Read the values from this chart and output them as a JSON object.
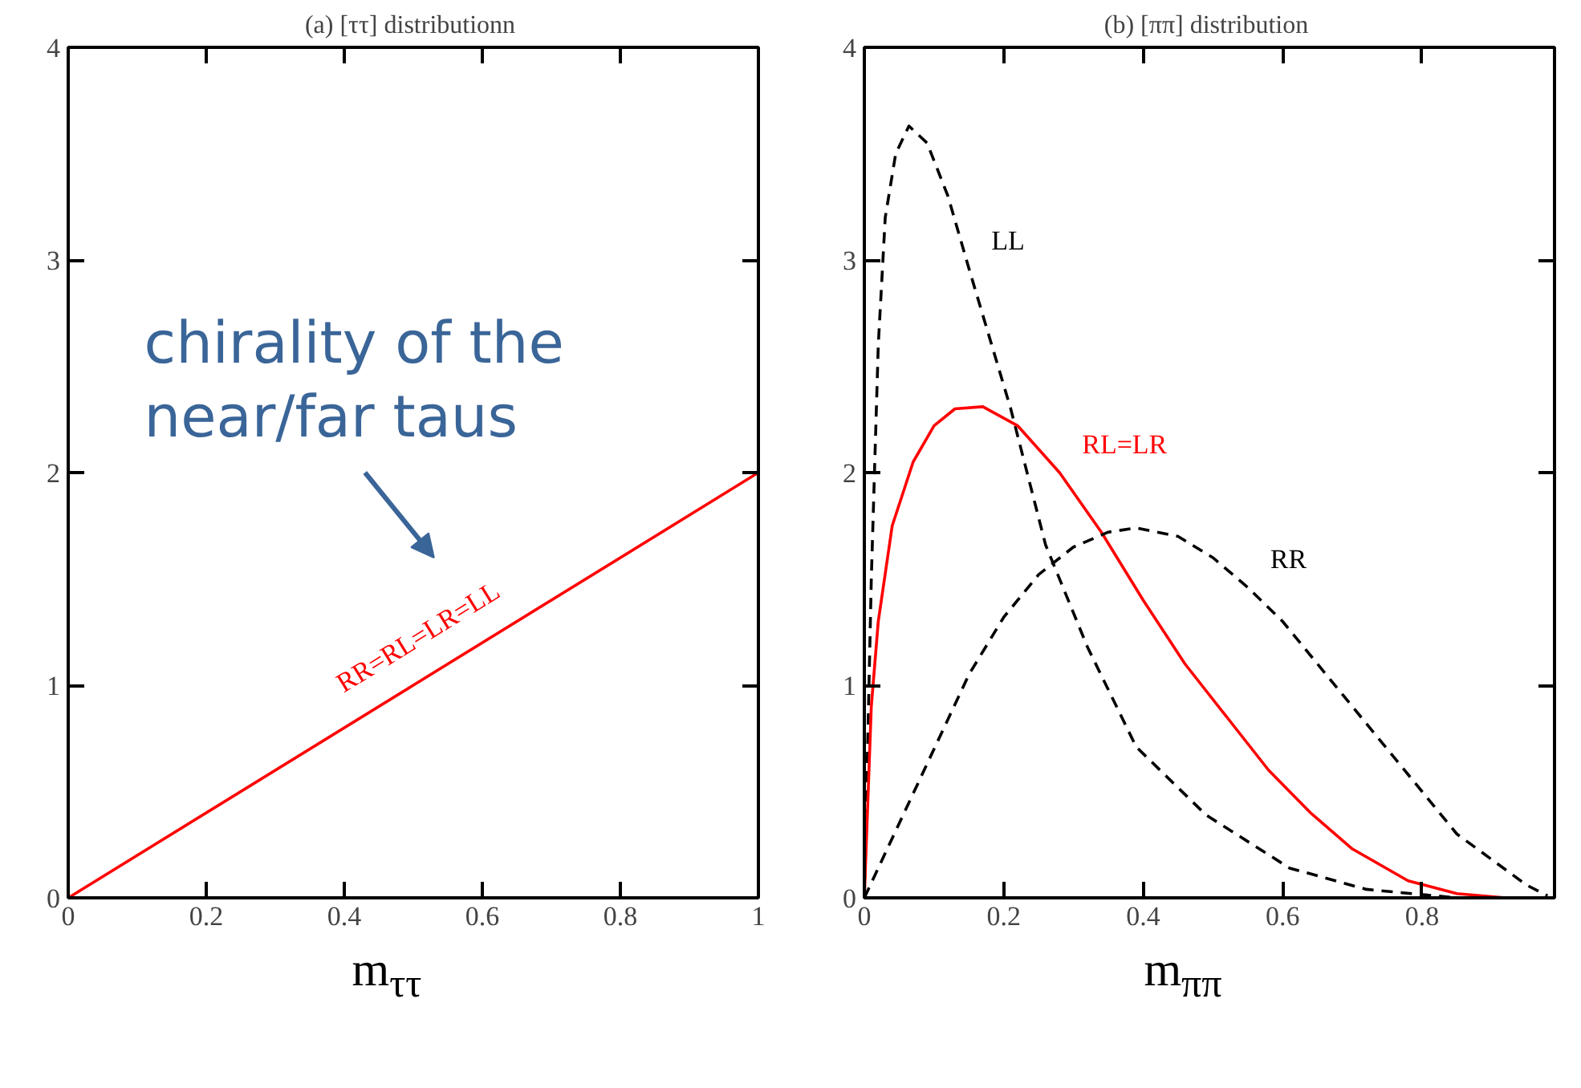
{
  "chart_data": [
    {
      "type": "line",
      "title": "(a)  [ττ] distributionn",
      "xlabel": "m$_{ττ}$",
      "xlim": [
        0,
        1
      ],
      "ylim": [
        0,
        4
      ],
      "xticks": [
        0,
        0.2,
        0.4,
        0.6,
        0.8,
        1
      ],
      "yticks": [
        0,
        1,
        2,
        3,
        4
      ],
      "annotations": [
        "chirality of the\nnear/far taus"
      ],
      "series": [
        {
          "name": "RR=RL=LR=LL",
          "color": "#ff0000",
          "line_style": "solid",
          "x": [
            0,
            0.5,
            1
          ],
          "values": [
            0,
            1,
            2
          ]
        }
      ]
    },
    {
      "type": "line",
      "title": "(b)  [ππ] distribution",
      "xlabel": "m$_{ππ}$",
      "xlim": [
        0,
        0.99
      ],
      "ylim": [
        0,
        4
      ],
      "xticks": [
        0,
        0.2,
        0.4,
        0.6,
        0.8
      ],
      "yticks": [
        0,
        1,
        2,
        3,
        4
      ],
      "series": [
        {
          "name": "LL",
          "color": "#000000",
          "line_style": "dashed",
          "x": [
            0,
            0.01,
            0.02,
            0.03,
            0.045,
            0.064,
            0.09,
            0.12,
            0.15,
            0.21,
            0.26,
            0.32,
            0.39,
            0.49,
            0.61,
            0.72,
            0.85
          ],
          "values": [
            0,
            1.5,
            2.6,
            3.2,
            3.5,
            3.63,
            3.55,
            3.3,
            2.96,
            2.3,
            1.66,
            1.18,
            0.71,
            0.39,
            0.14,
            0.04,
            0
          ]
        },
        {
          "name": "RL=LR",
          "color": "#ff0000",
          "line_style": "solid",
          "x": [
            0,
            0.01,
            0.02,
            0.04,
            0.07,
            0.1,
            0.13,
            0.17,
            0.22,
            0.28,
            0.34,
            0.4,
            0.46,
            0.52,
            0.58,
            0.64,
            0.7,
            0.78,
            0.85,
            0.92,
            0.98
          ],
          "values": [
            0,
            0.9,
            1.3,
            1.75,
            2.05,
            2.22,
            2.3,
            2.31,
            2.22,
            2.0,
            1.72,
            1.4,
            1.1,
            0.85,
            0.6,
            0.4,
            0.23,
            0.08,
            0.02,
            0,
            0
          ]
        },
        {
          "name": "RR",
          "color": "#000000",
          "line_style": "dashed",
          "x": [
            0,
            0.05,
            0.1,
            0.15,
            0.2,
            0.25,
            0.3,
            0.35,
            0.39,
            0.45,
            0.5,
            0.55,
            0.6,
            0.65,
            0.7,
            0.75,
            0.8,
            0.85,
            0.9,
            0.95,
            0.98
          ],
          "values": [
            0,
            0.35,
            0.7,
            1.05,
            1.32,
            1.52,
            1.65,
            1.72,
            1.74,
            1.7,
            1.6,
            1.46,
            1.3,
            1.1,
            0.9,
            0.7,
            0.5,
            0.3,
            0.18,
            0.06,
            0.01
          ]
        }
      ]
    }
  ]
}
